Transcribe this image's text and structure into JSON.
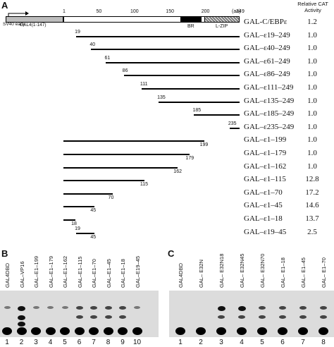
{
  "panel_a": {
    "letter": "A",
    "promoter_label": "SV40 early",
    "gal4_label": "GAL4(1-147)",
    "axis_ticks": [
      "1",
      "50",
      "100",
      "150",
      "200",
      "249"
    ],
    "axis_unit": "(aa)",
    "domain_labels": {
      "br": "BR",
      "lzip": "L-ZIP"
    },
    "activity_header": [
      "Relative CAT",
      "Activity"
    ],
    "constructs": [
      {
        "name": "GAL-C/EBPε",
        "start": 1,
        "end": 249,
        "start_label": "",
        "end_label": "",
        "activity": "1.2"
      },
      {
        "name": "GAL–ε19–249",
        "start": 19,
        "end": 249,
        "start_label": "19",
        "end_label": "",
        "activity": "1.0"
      },
      {
        "name": "GAL–ε40–249",
        "start": 40,
        "end": 249,
        "start_label": "40",
        "end_label": "",
        "activity": "1.0"
      },
      {
        "name": "GAL–ε61–249",
        "start": 61,
        "end": 249,
        "start_label": "61",
        "end_label": "",
        "activity": "1.0"
      },
      {
        "name": "GAL–ε86–249",
        "start": 86,
        "end": 249,
        "start_label": "86",
        "end_label": "",
        "activity": "1.0"
      },
      {
        "name": "GAL–ε111–249",
        "start": 111,
        "end": 249,
        "start_label": "111",
        "end_label": "",
        "activity": "1.0"
      },
      {
        "name": "GAL–ε135–249",
        "start": 135,
        "end": 249,
        "start_label": "135",
        "end_label": "",
        "activity": "1.0"
      },
      {
        "name": "GAL–ε185–249",
        "start": 185,
        "end": 249,
        "start_label": "185",
        "end_label": "",
        "activity": "1.0"
      },
      {
        "name": "GAL–ε235–249",
        "start": 235,
        "end": 249,
        "start_label": "235",
        "end_label": "",
        "activity": "1.0"
      },
      {
        "name": "GAL–ε1–199",
        "start": 1,
        "end": 199,
        "start_label": "",
        "end_label": "199",
        "activity": "1.0"
      },
      {
        "name": "GAL–ε1–179",
        "start": 1,
        "end": 179,
        "start_label": "",
        "end_label": "179",
        "activity": "1.0"
      },
      {
        "name": "GAL–ε1–162",
        "start": 1,
        "end": 162,
        "start_label": "",
        "end_label": "162",
        "activity": "1.0"
      },
      {
        "name": "GAL–ε1–115",
        "start": 1,
        "end": 115,
        "start_label": "",
        "end_label": "115",
        "activity": "12.8"
      },
      {
        "name": "GAL–ε1–70",
        "start": 1,
        "end": 70,
        "start_label": "",
        "end_label": "70",
        "activity": "17.2"
      },
      {
        "name": "GAL–ε1–45",
        "start": 1,
        "end": 45,
        "start_label": "",
        "end_label": "45",
        "activity": "14.6"
      },
      {
        "name": "GAL–ε1–18",
        "start": 1,
        "end": 18,
        "start_label": "",
        "end_label": "18",
        "activity": "13.7"
      },
      {
        "name": "GAL–ε19–45",
        "start": 19,
        "end": 45,
        "start_label": "19",
        "end_label": "45",
        "activity": "2.5"
      }
    ]
  },
  "panel_b": {
    "letter": "B",
    "lanes": [
      {
        "label": "GAL4DBD",
        "number": "1",
        "bands": [
          "weak"
        ]
      },
      {
        "label": "GAL–VP16",
        "number": "2",
        "bands": [
          "strong",
          "strong",
          "strong"
        ]
      },
      {
        "label": "GAL–E1–199",
        "number": "3",
        "bands": [
          "weak"
        ]
      },
      {
        "label": "GAL–E1–179",
        "number": "4",
        "bands": [
          "weak"
        ]
      },
      {
        "label": "GAL–E1–162",
        "number": "5",
        "bands": [
          "weak"
        ]
      },
      {
        "label": "GAL–E1–115",
        "number": "6",
        "bands": [
          "medium",
          "medium"
        ]
      },
      {
        "label": "GAL–E1–70",
        "number": "7",
        "bands": [
          "medium",
          "medium"
        ]
      },
      {
        "label": "GAL–E1–45",
        "number": "8",
        "bands": [
          "medium",
          "medium"
        ]
      },
      {
        "label": "GAL–E1–18",
        "number": "9",
        "bands": [
          "medium",
          "medium"
        ]
      },
      {
        "label": "GAL–E19–45",
        "number": "10",
        "bands": [
          "weak"
        ]
      }
    ]
  },
  "panel_c": {
    "letter": "C",
    "lanes": [
      {
        "label": "GAL4DBD",
        "number": "1",
        "bands": [
          "none"
        ]
      },
      {
        "label": "GAL– E32N",
        "number": "2",
        "bands": [
          "none"
        ]
      },
      {
        "label": "GAL– E32N18",
        "number": "3",
        "bands": [
          "strong",
          "medium"
        ]
      },
      {
        "label": "GAL– E32N45",
        "number": "4",
        "bands": [
          "strong",
          "medium"
        ]
      },
      {
        "label": "GAL– E32N70",
        "number": "5",
        "bands": [
          "medium",
          "medium"
        ]
      },
      {
        "label": "GAL– E1–18",
        "number": "6",
        "bands": [
          "medium",
          "medium"
        ]
      },
      {
        "label": "GAL– E1–45",
        "number": "7",
        "bands": [
          "medium",
          "medium"
        ]
      },
      {
        "label": "GAL– E1–70",
        "number": "8",
        "bands": [
          "medium",
          "medium"
        ]
      }
    ]
  }
}
